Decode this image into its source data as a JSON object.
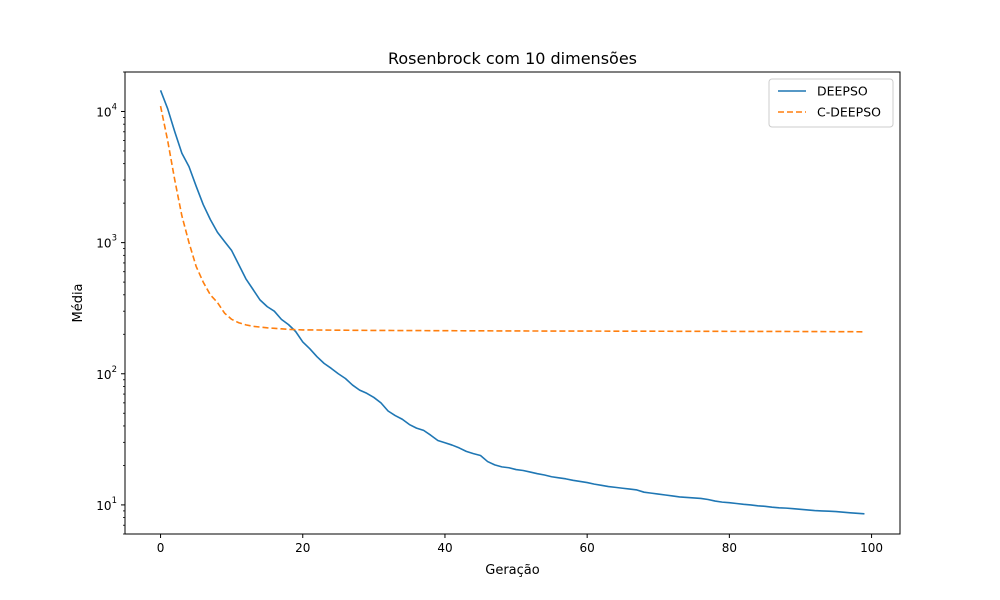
{
  "chart_data": {
    "type": "line",
    "title": "Rosenbrock com 10 dimensões",
    "xlabel": "Geração",
    "ylabel": "Média",
    "y_scale": "log",
    "xlim": [
      -5,
      104
    ],
    "ylim": [
      6,
      20000
    ],
    "x_ticks": [
      0,
      20,
      40,
      60,
      80,
      100
    ],
    "y_ticks": [
      {
        "value": 10,
        "base": "10",
        "exp": "1"
      },
      {
        "value": 100,
        "base": "10",
        "exp": "2"
      },
      {
        "value": 1000,
        "base": "10",
        "exp": "3"
      },
      {
        "value": 10000,
        "base": "10",
        "exp": "4"
      }
    ],
    "grid": false,
    "legend_position": "top-right",
    "series": [
      {
        "name": "DEEPSO",
        "color": "#1f77b4",
        "dash": "solid",
        "points": [
          [
            0,
            14500
          ],
          [
            1,
            10500
          ],
          [
            2,
            7000
          ],
          [
            3,
            4800
          ],
          [
            4,
            3800
          ],
          [
            5,
            2700
          ],
          [
            6,
            1950
          ],
          [
            7,
            1500
          ],
          [
            8,
            1200
          ],
          [
            9,
            1020
          ],
          [
            10,
            870
          ],
          [
            11,
            680
          ],
          [
            12,
            530
          ],
          [
            13,
            440
          ],
          [
            14,
            365
          ],
          [
            15,
            325
          ],
          [
            16,
            300
          ],
          [
            17,
            260
          ],
          [
            18,
            237
          ],
          [
            19,
            210
          ],
          [
            20,
            175
          ],
          [
            21,
            155
          ],
          [
            22,
            135
          ],
          [
            23,
            120
          ],
          [
            24,
            110
          ],
          [
            25,
            100
          ],
          [
            26,
            92
          ],
          [
            27,
            82
          ],
          [
            28,
            75
          ],
          [
            29,
            71
          ],
          [
            30,
            66
          ],
          [
            31,
            60
          ],
          [
            32,
            52
          ],
          [
            33,
            48
          ],
          [
            34,
            45
          ],
          [
            35,
            41
          ],
          [
            36,
            38.5
          ],
          [
            37,
            37
          ],
          [
            38,
            34
          ],
          [
            39,
            31
          ],
          [
            40,
            29.8
          ],
          [
            41,
            28.6
          ],
          [
            42,
            27.2
          ],
          [
            43,
            25.6
          ],
          [
            44,
            24.6
          ],
          [
            45,
            23.8
          ],
          [
            46,
            21.4
          ],
          [
            47,
            20.2
          ],
          [
            48,
            19.5
          ],
          [
            49,
            19.2
          ],
          [
            50,
            18.6
          ],
          [
            51,
            18.3
          ],
          [
            52,
            17.8
          ],
          [
            53,
            17.3
          ],
          [
            54,
            16.9
          ],
          [
            55,
            16.4
          ],
          [
            56,
            16.1
          ],
          [
            57,
            15.8
          ],
          [
            58,
            15.4
          ],
          [
            59,
            15.1
          ],
          [
            60,
            14.8
          ],
          [
            61,
            14.4
          ],
          [
            62,
            14.1
          ],
          [
            63,
            13.8
          ],
          [
            64,
            13.6
          ],
          [
            65,
            13.4
          ],
          [
            66,
            13.2
          ],
          [
            67,
            13.0
          ],
          [
            68,
            12.5
          ],
          [
            69,
            12.3
          ],
          [
            70,
            12.1
          ],
          [
            71,
            11.9
          ],
          [
            72,
            11.7
          ],
          [
            73,
            11.5
          ],
          [
            74,
            11.4
          ],
          [
            75,
            11.3
          ],
          [
            76,
            11.2
          ],
          [
            77,
            11.0
          ],
          [
            78,
            10.7
          ],
          [
            79,
            10.5
          ],
          [
            80,
            10.4
          ],
          [
            81,
            10.25
          ],
          [
            82,
            10.1
          ],
          [
            83,
            10.0
          ],
          [
            84,
            9.85
          ],
          [
            85,
            9.75
          ],
          [
            86,
            9.6
          ],
          [
            87,
            9.5
          ],
          [
            88,
            9.45
          ],
          [
            89,
            9.35
          ],
          [
            90,
            9.25
          ],
          [
            91,
            9.15
          ],
          [
            92,
            9.05
          ],
          [
            93,
            9.0
          ],
          [
            94,
            8.95
          ],
          [
            95,
            8.9
          ],
          [
            96,
            8.8
          ],
          [
            97,
            8.7
          ],
          [
            98,
            8.62
          ],
          [
            99,
            8.55
          ]
        ]
      },
      {
        "name": "C-DEEPSO",
        "color": "#ff7f0e",
        "dash": "dashed",
        "points": [
          [
            0,
            11000
          ],
          [
            1,
            6000
          ],
          [
            2,
            3000
          ],
          [
            3,
            1600
          ],
          [
            4,
            1000
          ],
          [
            5,
            660
          ],
          [
            6,
            500
          ],
          [
            7,
            400
          ],
          [
            8,
            350
          ],
          [
            9,
            290
          ],
          [
            10,
            260
          ],
          [
            11,
            245
          ],
          [
            12,
            236
          ],
          [
            13,
            230
          ],
          [
            14,
            227
          ],
          [
            15,
            224
          ],
          [
            16,
            222
          ],
          [
            17,
            220
          ],
          [
            18,
            218
          ],
          [
            19,
            217
          ],
          [
            20,
            216
          ],
          [
            25,
            215
          ],
          [
            30,
            214
          ],
          [
            40,
            213
          ],
          [
            50,
            212
          ],
          [
            60,
            211.5
          ],
          [
            70,
            211
          ],
          [
            80,
            210.5
          ],
          [
            90,
            210
          ],
          [
            99,
            209
          ]
        ]
      }
    ]
  }
}
